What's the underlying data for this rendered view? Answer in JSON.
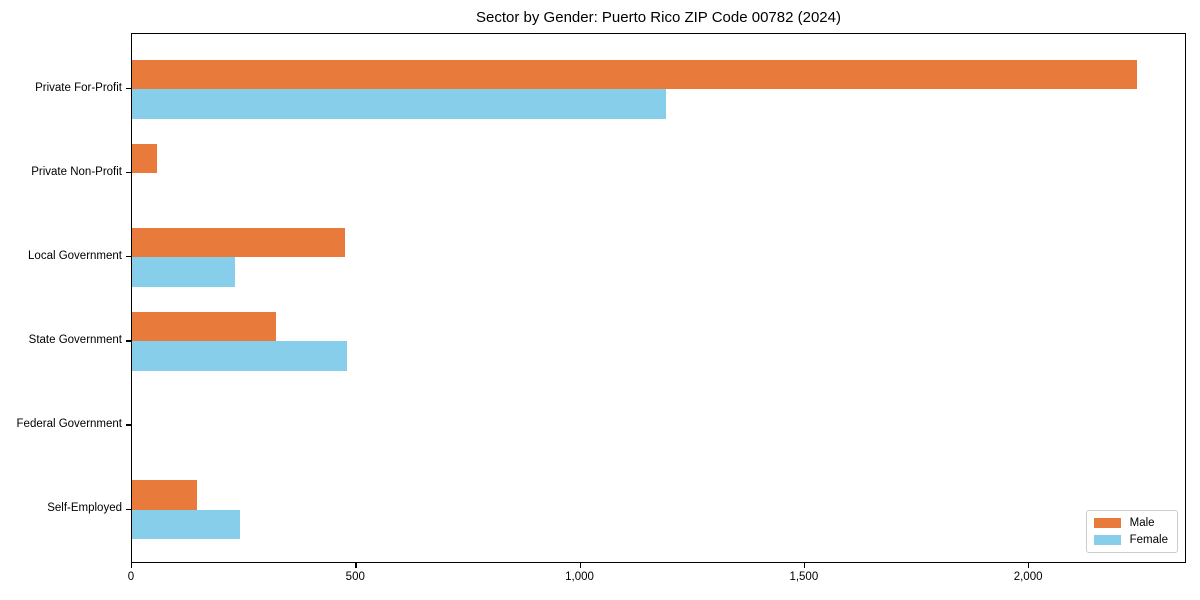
{
  "chart_data": {
    "type": "bar",
    "orientation": "horizontal",
    "title": "Sector by Gender: Puerto Rico ZIP Code 00782 (2024)",
    "categories": [
      "Private For-Profit",
      "Private Non-Profit",
      "Local Government",
      "State Government",
      "Federal Government",
      "Self-Employed"
    ],
    "series": [
      {
        "name": "Male",
        "color": "#e87a3c",
        "values": [
          2240,
          55,
          475,
          320,
          0,
          145
        ]
      },
      {
        "name": "Female",
        "color": "#87ceeb",
        "values": [
          1190,
          0,
          230,
          480,
          0,
          240
        ]
      }
    ],
    "xlabel": "",
    "ylabel": "",
    "xlim": [
      0,
      2352
    ],
    "xticks": [
      0,
      500,
      1000,
      1500,
      2000
    ],
    "xtick_labels": [
      "0",
      "500",
      "1,000",
      "1,500",
      "2,000"
    ],
    "grid": false,
    "legend": {
      "position": "lower right"
    }
  }
}
